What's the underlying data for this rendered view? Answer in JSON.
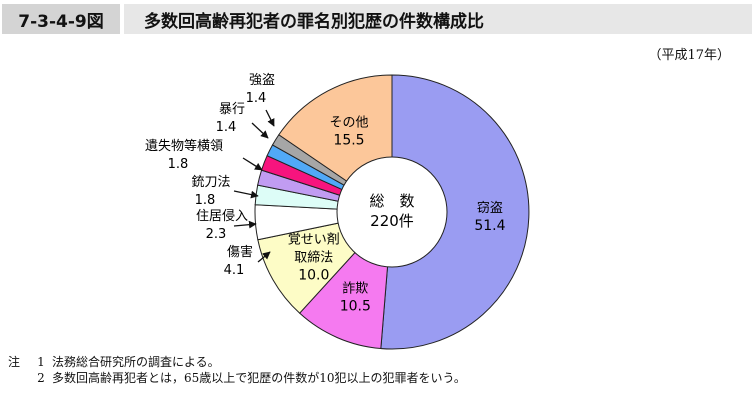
{
  "figure": {
    "number": "7-3-4-9図",
    "title": "多数回高齢再犯者の罪名別犯歴の件数構成比",
    "period": "（平成17年）"
  },
  "center": {
    "label": "総　数",
    "value": "220件"
  },
  "chart_data": {
    "type": "pie",
    "style": "donut",
    "start_angle_deg": 0,
    "direction": "clockwise",
    "total_label": "総　数",
    "total_value": "220件",
    "slices": [
      {
        "name": "窃盗",
        "value": 51.4,
        "color": "#9a9cf2",
        "label_placement": "inside"
      },
      {
        "name": "詐欺",
        "value": 10.5,
        "color": "#f57af0",
        "label_placement": "inside"
      },
      {
        "name": "覚せい剤取締法",
        "label_lines": [
          "覚せい剤",
          "取締法"
        ],
        "value": 10.0,
        "color": "#fdfcc6",
        "label_placement": "inside"
      },
      {
        "name": "傷害",
        "value": 4.1,
        "color": "#ffffff",
        "label_placement": "outside"
      },
      {
        "name": "住居侵入",
        "value": 2.3,
        "color": "#ddfdf7",
        "label_placement": "outside"
      },
      {
        "name": "銃刀法",
        "value": 1.8,
        "color": "#c19cf2",
        "label_placement": "outside"
      },
      {
        "name": "遺失物等横領",
        "value": 1.8,
        "color": "#f7147e",
        "label_placement": "outside"
      },
      {
        "name": "暴行",
        "value": 1.4,
        "color": "#51a9f7",
        "label_placement": "outside"
      },
      {
        "name": "強盗",
        "value": 1.4,
        "color": "#a6a6a6",
        "label_placement": "outside"
      },
      {
        "name": "その他",
        "value": 15.5,
        "color": "#fcc79a",
        "label_placement": "inside"
      }
    ],
    "extra_colors": {
      "unlabeled_sliver": "#dcdcf5"
    }
  },
  "notes": {
    "head": "注",
    "items": [
      {
        "num": "1",
        "text": "法務総合研究所の調査による。"
      },
      {
        "num": "2",
        "text": "多数回高齢再犯者とは，65歳以上で犯歴の件数が10犯以上の犯罪者をいう。"
      }
    ]
  }
}
